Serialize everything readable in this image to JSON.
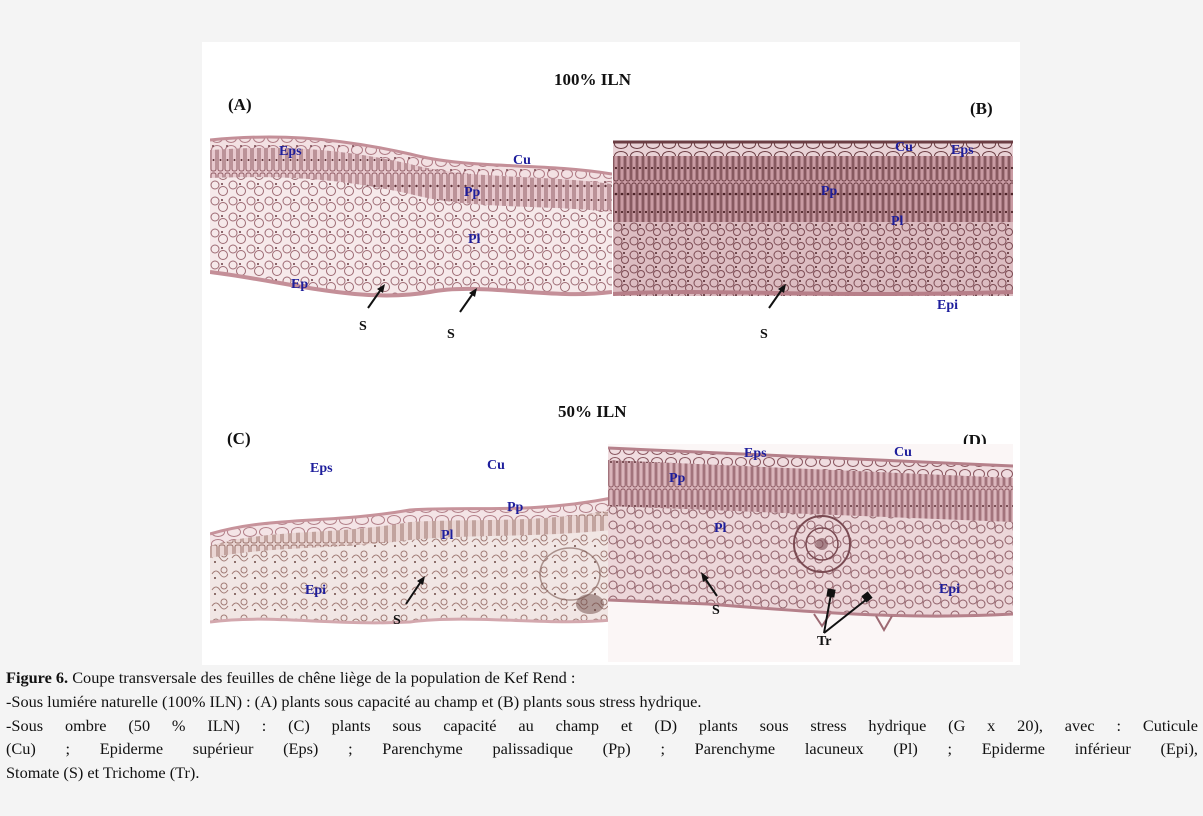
{
  "figure": {
    "title_top": "100% ILN",
    "title_bottom": "50% ILN",
    "panels": {
      "A": {
        "letter": "(A)",
        "labels": {
          "eps": "Eps",
          "cu": "Cu",
          "pp": "Pp",
          "pl": "Pl",
          "ep": "Ep",
          "s1": "S",
          "s2": "S"
        }
      },
      "B": {
        "letter": "(B)",
        "labels": {
          "cu": "Cu",
          "eps": "Eps",
          "pp": "Pp",
          "pl": "Pl",
          "epi": "Epi",
          "s": "S"
        }
      },
      "C": {
        "letter": "(C)",
        "labels": {
          "eps": "Eps",
          "cu": "Cu",
          "pp": "Pp",
          "pl": "Pl",
          "epi": "Epi",
          "s": "S"
        }
      },
      "D": {
        "letter": "(D)",
        "labels": {
          "eps": "Eps",
          "cu": "Cu",
          "pp": "Pp",
          "pl": "Pl",
          "epi": "Epi",
          "s": "S",
          "tr": "Tr"
        }
      }
    }
  },
  "caption": {
    "fig_label": "Figure 6.",
    "line1": "Coupe transversale des feuilles de chêne liège de la population de Kef Rend :",
    "line2": "-Sous lumiére naturelle (100% ILN) : (A) plants sous capacité au champ et (B) plants sous stress hydrique.",
    "line3": "-Sous ombre (50 % ILN) : (C) plants sous capacité au champ et (D) plants sous stress hydrique (G x 20), avec : Cuticule",
    "line4": "(Cu) ; Epiderme supérieur (Eps) ; Parenchyme palissadique (Pp) ; Parenchyme lacuneux (Pl) ; Epiderme inférieur (Epi),",
    "line5": "Stomate (S) et Trichome (Tr)."
  },
  "colors": {
    "background": "#f4f4f4",
    "panel": "#ffffff",
    "label_blue": "#1e1e9c",
    "tissue_pink": "#c99ba3",
    "tissue_dark": "#6b3d43"
  }
}
